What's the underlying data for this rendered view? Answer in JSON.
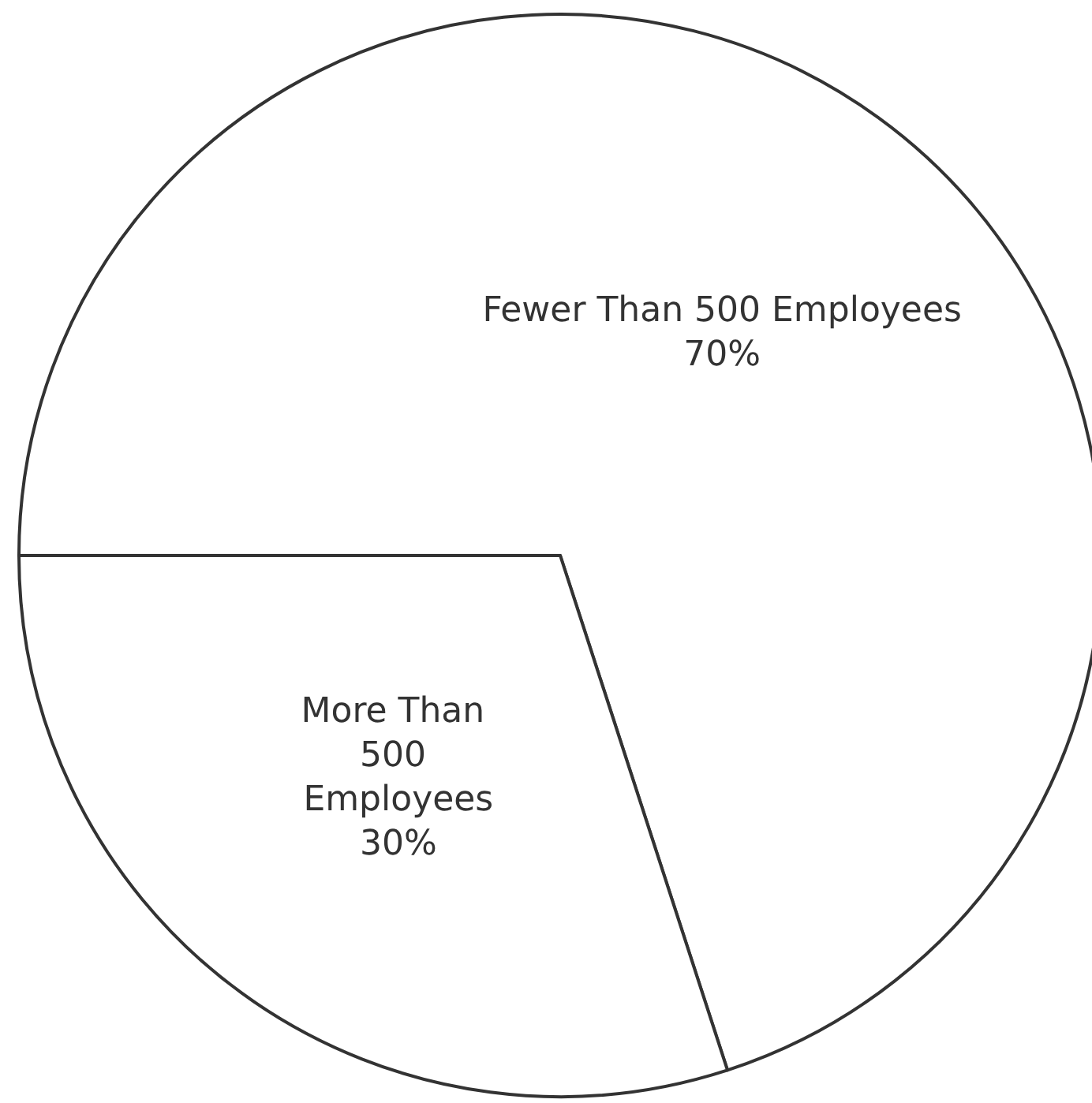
{
  "chart_data": {
    "type": "pie",
    "categories": [
      "Fewer Than 500 Employees",
      "More Than 500 Employees"
    ],
    "values": [
      70,
      30
    ],
    "value_labels": [
      "70%",
      "30%"
    ],
    "colors": [
      "#ffffff",
      "#ffffff"
    ],
    "legend": false
  }
}
